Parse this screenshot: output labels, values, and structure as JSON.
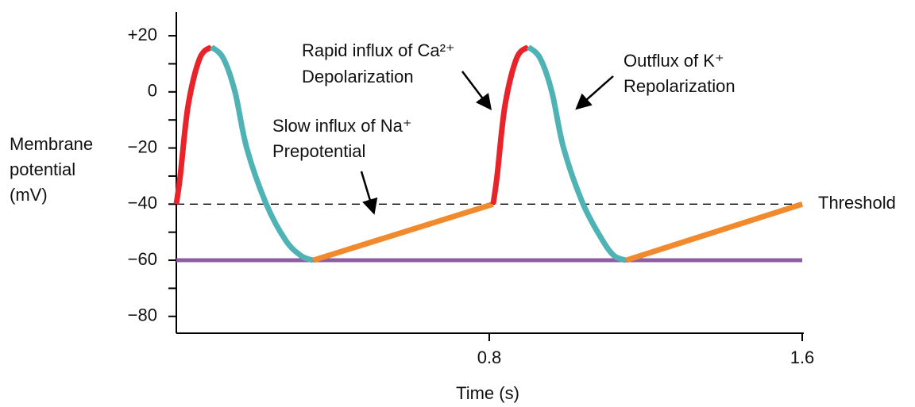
{
  "chart_data": {
    "type": "line",
    "xlabel": "Time (s)",
    "ylabel": [
      "Membrane",
      "potential",
      "(mV)"
    ],
    "xlim": [
      0,
      1.6
    ],
    "xticks": [
      0.8,
      1.6
    ],
    "ylim": [
      -86,
      28.5
    ],
    "yticks": [
      {
        "value": 20,
        "label": "+20"
      },
      0,
      {
        "value": -20,
        "label": "−20"
      },
      {
        "value": -40,
        "label": "−40"
      },
      {
        "value": -60,
        "label": "−60"
      },
      {
        "value": -80,
        "label": "−80"
      }
    ],
    "yminor_ticks": [
      10,
      -10,
      -30,
      -50,
      -70
    ],
    "series": [
      {
        "color": "#e8232a",
        "x": [
          0,
          0.01,
          0.03,
          0.06,
          0.09
        ],
        "values": [
          -40,
          -30,
          -5,
          12,
          16
        ]
      },
      {
        "color": "#4fb3b5",
        "x": [
          0.09,
          0.12,
          0.15,
          0.18,
          0.23,
          0.28,
          0.32,
          0.35
        ],
        "values": [
          16,
          12,
          0,
          -20,
          -40,
          -53,
          -58.5,
          -60
        ]
      },
      {
        "color": "#f08a2c",
        "x": [
          0.35,
          0.58,
          0.81
        ],
        "values": [
          -60,
          -50,
          -40
        ]
      },
      {
        "color": "#e8232a",
        "x": [
          0.81,
          0.82,
          0.84,
          0.87,
          0.9
        ],
        "values": [
          -40,
          -30,
          -5,
          12,
          16
        ]
      },
      {
        "color": "#4fb3b5",
        "x": [
          0.9,
          0.93,
          0.96,
          0.99,
          1.04,
          1.09,
          1.12,
          1.15
        ],
        "values": [
          16,
          12,
          0,
          -20,
          -40,
          -53,
          -58.5,
          -60
        ]
      },
      {
        "color": "#f08a2c",
        "x": [
          1.15,
          1.375,
          1.6
        ],
        "values": [
          -60,
          -50,
          -40
        ]
      }
    ],
    "reference_lines": [
      {
        "value": -40,
        "label": "Threshold",
        "color": "#000000",
        "dashed": true
      },
      {
        "value": -60,
        "color": "#8e5ea2",
        "dashed": false
      }
    ],
    "annotations": [
      [
        "Rapid influx of Ca²⁺",
        "Depolarization"
      ],
      [
        "Outflux of K⁺",
        "Repolarization"
      ],
      [
        "Slow influx of Na⁺",
        "Prepotential"
      ]
    ]
  }
}
